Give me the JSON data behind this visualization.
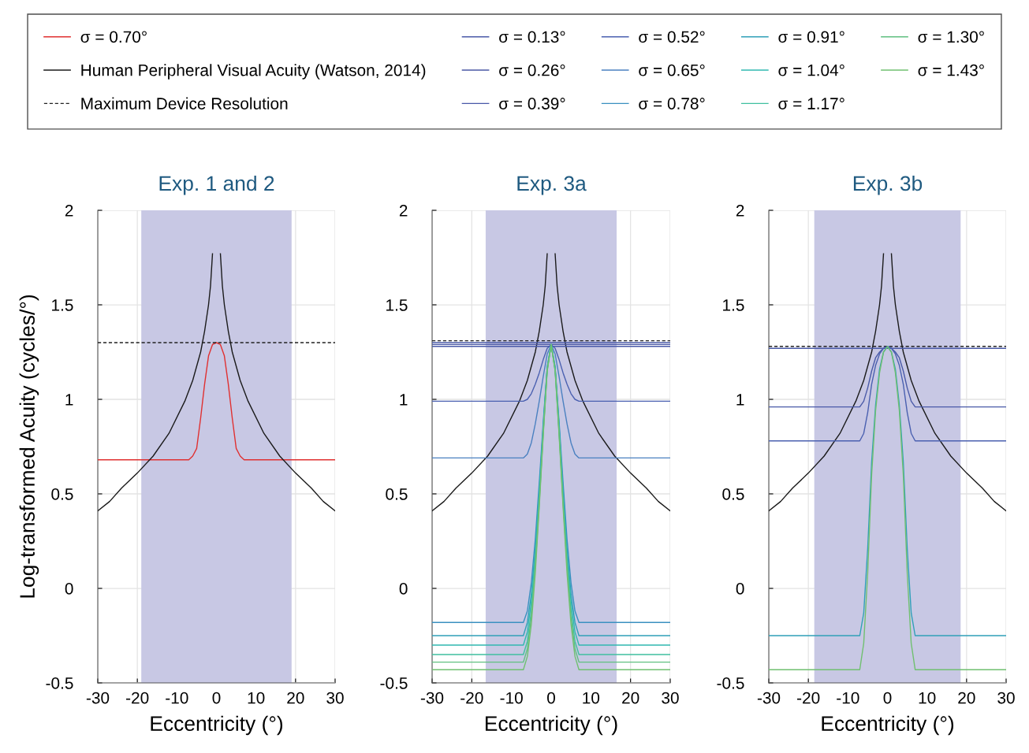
{
  "chart_data": [
    {
      "type": "line",
      "title": "Exp. 1 and 2",
      "xlabel": "Eccentricity (°)",
      "ylabel": "Log-transformed Acuity (cycles/°)",
      "xlim": [
        -30,
        30
      ],
      "ylim": [
        -0.5,
        2
      ],
      "xticks": [
        -30,
        -20,
        -10,
        0,
        10,
        20,
        30
      ],
      "yticks": [
        -0.5,
        0,
        0.5,
        1,
        1.5,
        2
      ],
      "grid": true,
      "legend": "top",
      "bands": [
        {
          "axis": "x",
          "from": -19,
          "to": 19,
          "color": "#c8c8e4"
        }
      ],
      "series": [
        {
          "name": "σ = 0.70°",
          "color": "#e03030",
          "x": [
            -30,
            -7,
            -6,
            -5,
            -4,
            -3,
            -2,
            -1,
            0,
            1,
            2,
            3,
            4,
            5,
            6,
            7,
            30
          ],
          "values": [
            0.68,
            0.68,
            0.7,
            0.74,
            0.9,
            1.08,
            1.23,
            1.29,
            1.3,
            1.29,
            1.23,
            1.08,
            0.9,
            0.74,
            0.7,
            0.68,
            0.68
          ]
        },
        {
          "name": "Human Peripheral Visual Acuity (Watson, 2014)",
          "color": "#1a1a1a",
          "x": [
            -30,
            -27,
            -24,
            -20,
            -16,
            -12,
            -8,
            -6,
            -4,
            -3,
            -2,
            -1.5,
            -1,
            0,
            1,
            1.5,
            2,
            3,
            4,
            6,
            8,
            12,
            16,
            20,
            24,
            27,
            30
          ],
          "values": [
            0.41,
            0.46,
            0.53,
            0.61,
            0.7,
            0.82,
            0.99,
            1.1,
            1.25,
            1.36,
            1.5,
            1.6,
            1.77,
            null,
            1.77,
            1.6,
            1.5,
            1.36,
            1.25,
            1.1,
            0.99,
            0.82,
            0.7,
            0.61,
            0.53,
            0.46,
            0.41
          ]
        },
        {
          "name": "Maximum Device Resolution",
          "color": "#222222",
          "line_style": "dashed",
          "x": [
            -30,
            30
          ],
          "values": [
            1.3,
            1.3
          ]
        }
      ]
    },
    {
      "type": "line",
      "title": "Exp. 3a",
      "xlabel": "Eccentricity (°)",
      "xlim": [
        -30,
        30
      ],
      "ylim": [
        -0.5,
        2
      ],
      "xticks": [
        -30,
        -20,
        -10,
        0,
        10,
        20,
        30
      ],
      "yticks": [
        -0.5,
        0,
        0.5,
        1,
        1.5,
        2
      ],
      "grid": true,
      "legend": "top",
      "bands": [
        {
          "axis": "x",
          "from": -16.5,
          "to": 16.5,
          "color": "#c8c8e4"
        }
      ],
      "series": [
        {
          "color": "#1a1a1a",
          "x": [
            -30,
            -27,
            -24,
            -20,
            -16,
            -12,
            -8,
            -6,
            -4,
            -3,
            -2,
            -1.5,
            -1,
            0,
            1,
            1.5,
            2,
            3,
            4,
            6,
            8,
            12,
            16,
            20,
            24,
            27,
            30
          ],
          "values": [
            0.41,
            0.46,
            0.53,
            0.61,
            0.7,
            0.82,
            0.99,
            1.1,
            1.25,
            1.36,
            1.5,
            1.6,
            1.77,
            null,
            1.77,
            1.6,
            1.5,
            1.36,
            1.25,
            1.1,
            0.99,
            0.82,
            0.7,
            0.61,
            0.53,
            0.46,
            0.41
          ]
        },
        {
          "color": "#222222",
          "line_style": "dashed",
          "x": [
            -30,
            30
          ],
          "values": [
            1.31,
            1.31
          ]
        },
        {
          "name": "σ = 0.13°",
          "color": "#4a5aa8",
          "x": [
            -30,
            30
          ],
          "values": [
            1.3,
            1.3
          ]
        },
        {
          "name": "σ = 0.26°",
          "color": "#4a58a4",
          "x": [
            -30,
            30
          ],
          "values": [
            1.29,
            1.29
          ]
        },
        {
          "name": "σ = 0.39°",
          "color": "#4858a8",
          "x": [
            -30,
            30
          ],
          "values": [
            1.28,
            1.28
          ]
        },
        {
          "name": "σ = 0.52°",
          "color": "#4a60b0",
          "x": [
            -30,
            -7,
            -6,
            -5,
            -4,
            -3,
            -2,
            -1,
            0,
            1,
            2,
            3,
            4,
            5,
            6,
            7,
            30
          ],
          "values": [
            0.99,
            0.99,
            1.0,
            1.03,
            1.08,
            1.14,
            1.21,
            1.27,
            1.29,
            1.27,
            1.21,
            1.14,
            1.08,
            1.03,
            1.0,
            0.99,
            0.99
          ]
        },
        {
          "name": "σ = 0.65°",
          "color": "#4a80c0",
          "x": [
            -30,
            -7,
            -6,
            -5,
            -4,
            -3,
            -2,
            -1,
            0,
            1,
            2,
            3,
            4,
            5,
            6,
            7,
            30
          ],
          "values": [
            0.69,
            0.69,
            0.71,
            0.77,
            0.87,
            0.99,
            1.12,
            1.24,
            1.29,
            1.24,
            1.12,
            0.99,
            0.87,
            0.77,
            0.71,
            0.69,
            0.69
          ]
        },
        {
          "name": "σ = 0.78°",
          "color": "#3a90c0",
          "x": [
            -30,
            -7,
            -6,
            -5,
            -4,
            -3,
            -2,
            -1,
            0,
            1,
            2,
            3,
            4,
            5,
            6,
            7,
            30
          ],
          "values": [
            -0.18,
            -0.18,
            -0.12,
            0.03,
            0.26,
            0.56,
            0.88,
            1.17,
            1.29,
            1.17,
            0.88,
            0.56,
            0.26,
            0.03,
            -0.12,
            -0.18,
            -0.18
          ]
        },
        {
          "name": "σ = 0.91°",
          "color": "#30a0b8",
          "x": [
            -30,
            -7,
            -6,
            -5,
            -4,
            -3,
            -2,
            -1,
            0,
            1,
            2,
            3,
            4,
            5,
            6,
            7,
            30
          ],
          "values": [
            -0.25,
            -0.25,
            -0.18,
            -0.03,
            0.21,
            0.52,
            0.86,
            1.17,
            1.29,
            1.17,
            0.86,
            0.52,
            0.21,
            -0.03,
            -0.18,
            -0.25,
            -0.25
          ]
        },
        {
          "name": "σ = 1.04°",
          "color": "#30b8b0",
          "x": [
            -30,
            -7,
            -6,
            -5,
            -4,
            -3,
            -2,
            -1,
            0,
            1,
            2,
            3,
            4,
            5,
            6,
            7,
            30
          ],
          "values": [
            -0.3,
            -0.3,
            -0.23,
            -0.07,
            0.18,
            0.5,
            0.85,
            1.16,
            1.29,
            1.16,
            0.85,
            0.5,
            0.18,
            -0.07,
            -0.23,
            -0.3,
            -0.3
          ]
        },
        {
          "name": "σ = 1.17°",
          "color": "#40c0a0",
          "x": [
            -30,
            -7,
            -6,
            -5,
            -4,
            -3,
            -2,
            -1,
            0,
            1,
            2,
            3,
            4,
            5,
            6,
            7,
            30
          ],
          "values": [
            -0.35,
            -0.35,
            -0.28,
            -0.12,
            0.14,
            0.47,
            0.83,
            1.16,
            1.29,
            1.16,
            0.83,
            0.47,
            0.14,
            -0.12,
            -0.28,
            -0.35,
            -0.35
          ]
        },
        {
          "name": "σ = 1.30°",
          "color": "#60c080",
          "x": [
            -30,
            -7,
            -6,
            -5,
            -4,
            -3,
            -2,
            -1,
            0,
            1,
            2,
            3,
            4,
            5,
            6,
            7,
            30
          ],
          "values": [
            -0.39,
            -0.39,
            -0.32,
            -0.15,
            0.12,
            0.45,
            0.82,
            1.15,
            1.29,
            1.15,
            0.82,
            0.45,
            0.12,
            -0.15,
            -0.32,
            -0.39,
            -0.39
          ]
        },
        {
          "name": "σ = 1.43°",
          "color": "#70c070",
          "x": [
            -30,
            -7,
            -6,
            -5,
            -4,
            -3,
            -2,
            -1,
            0,
            1,
            2,
            3,
            4,
            5,
            6,
            7,
            30
          ],
          "values": [
            -0.43,
            -0.43,
            -0.36,
            -0.19,
            0.08,
            0.43,
            0.81,
            1.15,
            1.29,
            1.15,
            0.81,
            0.43,
            0.08,
            -0.19,
            -0.36,
            -0.43,
            -0.43
          ]
        }
      ]
    },
    {
      "type": "line",
      "title": "Exp. 3b",
      "xlabel": "Eccentricity (°)",
      "xlim": [
        -30,
        30
      ],
      "ylim": [
        -0.5,
        2
      ],
      "xticks": [
        -30,
        -20,
        -10,
        0,
        10,
        20,
        30
      ],
      "yticks": [
        -0.5,
        0,
        0.5,
        1,
        1.5,
        2
      ],
      "grid": true,
      "bands": [
        {
          "axis": "x",
          "from": -18.5,
          "to": 18.5,
          "color": "#c8c8e4"
        }
      ],
      "series": [
        {
          "color": "#1a1a1a",
          "x": [
            -30,
            -27,
            -24,
            -20,
            -16,
            -12,
            -8,
            -6,
            -4,
            -3,
            -2,
            -1.5,
            -1,
            0,
            1,
            1.5,
            2,
            3,
            4,
            6,
            8,
            12,
            16,
            20,
            24,
            27,
            30
          ],
          "values": [
            0.41,
            0.46,
            0.53,
            0.61,
            0.7,
            0.82,
            0.99,
            1.1,
            1.25,
            1.36,
            1.5,
            1.6,
            1.77,
            null,
            1.77,
            1.6,
            1.5,
            1.36,
            1.25,
            1.1,
            0.99,
            0.82,
            0.7,
            0.61,
            0.53,
            0.46,
            0.41
          ]
        },
        {
          "color": "#222222",
          "line_style": "dashed",
          "x": [
            -30,
            30
          ],
          "values": [
            1.28,
            1.28
          ]
        },
        {
          "color": "#4a5aa8",
          "x": [
            -30,
            30
          ],
          "values": [
            1.27,
            1.27
          ]
        },
        {
          "color": "#4a5aa8",
          "x": [
            -30,
            -7,
            -6,
            -5,
            -4,
            -3,
            -2,
            -1,
            0,
            1,
            2,
            3,
            4,
            5,
            6,
            7,
            30
          ],
          "values": [
            0.96,
            0.96,
            0.99,
            1.06,
            1.15,
            1.22,
            1.25,
            1.27,
            1.28,
            1.27,
            1.25,
            1.22,
            1.15,
            1.06,
            0.99,
            0.96,
            0.96
          ]
        },
        {
          "color": "#4a60b0",
          "x": [
            -30,
            -7,
            -6,
            -5,
            -4,
            -3,
            -2,
            -1,
            0,
            1,
            2,
            3,
            4,
            5,
            6,
            7,
            30
          ],
          "values": [
            0.78,
            0.78,
            0.82,
            0.93,
            1.08,
            1.18,
            1.24,
            1.27,
            1.28,
            1.27,
            1.24,
            1.18,
            1.08,
            0.93,
            0.82,
            0.78,
            0.78
          ]
        },
        {
          "color": "#30a0b8",
          "x": [
            -30,
            -7,
            -6,
            -5,
            -4,
            -3,
            -2,
            -1,
            0,
            1,
            2,
            3,
            4,
            5,
            6,
            7,
            30
          ],
          "values": [
            -0.25,
            -0.25,
            -0.13,
            0.21,
            0.67,
            0.97,
            1.16,
            1.25,
            1.28,
            1.25,
            1.16,
            0.97,
            0.67,
            0.21,
            -0.13,
            -0.25,
            -0.25
          ]
        },
        {
          "color": "#70c070",
          "x": [
            -30,
            -7,
            -6,
            -5,
            -4,
            -3,
            -2,
            -1,
            0,
            1,
            2,
            3,
            4,
            5,
            6,
            7,
            30
          ],
          "values": [
            -0.43,
            -0.43,
            -0.29,
            0.08,
            0.6,
            0.94,
            1.14,
            1.25,
            1.28,
            1.25,
            1.14,
            0.94,
            0.6,
            0.08,
            -0.29,
            -0.43,
            -0.43
          ]
        }
      ]
    }
  ]
}
